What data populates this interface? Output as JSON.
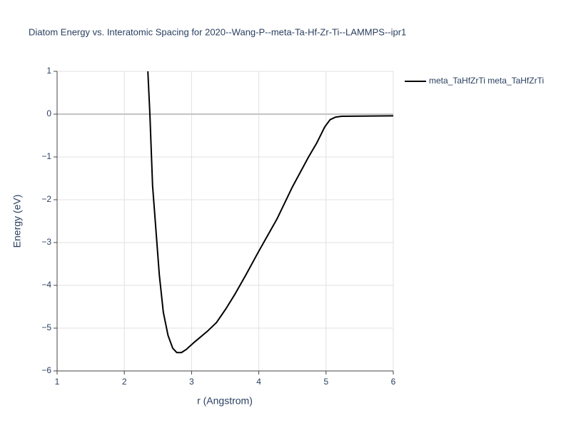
{
  "chart_data": {
    "type": "line",
    "title": "Diatom Energy vs. Interatomic Spacing for 2020--Wang-P--meta-Ta-Hf-Zr-Ti--LAMMPS--ipr1",
    "x_label": "r (Angstrom)",
    "y_label": "Energy (eV)",
    "xlim": [
      1,
      6
    ],
    "ylim": [
      -6,
      1
    ],
    "xticks": [
      1,
      2,
      3,
      4,
      5,
      6
    ],
    "yticks": [
      {
        "value": -6,
        "label": "−6"
      },
      {
        "value": -5,
        "label": "−5"
      },
      {
        "value": -4,
        "label": "−4"
      },
      {
        "value": -3,
        "label": "−3"
      },
      {
        "value": -2,
        "label": "−2"
      },
      {
        "value": -1,
        "label": "−1"
      },
      0,
      1
    ],
    "grid": true,
    "legend": "top-right",
    "series": [
      {
        "name": "meta_TaHfZrTi meta_TaHfZrTi",
        "color": "#000000",
        "x": [
          2.35,
          2.38,
          2.42,
          2.46,
          2.52,
          2.58,
          2.65,
          2.72,
          2.78,
          2.85,
          2.92,
          3.04,
          3.23,
          3.37,
          3.51,
          3.64,
          3.81,
          3.99,
          4.27,
          4.5,
          4.74,
          4.86,
          4.98,
          5.06,
          5.14,
          5.23,
          6.0
        ],
        "values": [
          1.0,
          0.0,
          -1.67,
          -2.5,
          -3.75,
          -4.63,
          -5.17,
          -5.47,
          -5.57,
          -5.57,
          -5.5,
          -5.33,
          -5.08,
          -4.87,
          -4.55,
          -4.22,
          -3.75,
          -3.23,
          -2.45,
          -1.7,
          -1.0,
          -0.68,
          -0.3,
          -0.13,
          -0.07,
          -0.05,
          -0.04
        ]
      }
    ]
  }
}
